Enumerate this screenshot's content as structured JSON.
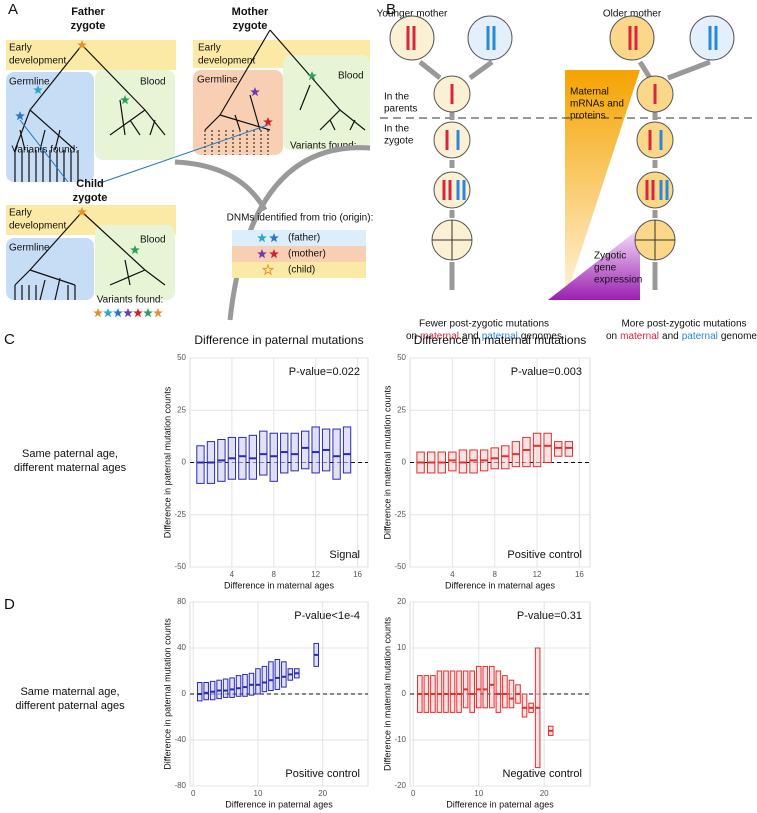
{
  "figure": {
    "panel_labels": [
      "A",
      "B",
      "C",
      "D"
    ],
    "A": {
      "labels": [
        "Father",
        "zygote",
        "Mother",
        "zygote",
        "Early",
        "development",
        "Germline",
        "Blood",
        "Early",
        "development",
        "Germline",
        "Blood",
        "Variants found:",
        "Variants found:",
        "Child",
        "zygote",
        "Early",
        "development",
        "Germline",
        "Blood",
        "Variants found:",
        "DNMs identified from trio (origin):",
        "(father)",
        "(mother)",
        "(child)"
      ]
    },
    "B": {
      "labels": [
        "Younger mother",
        "Older mother",
        "In the",
        "parents",
        "In the",
        "zygote",
        "Maternal",
        "mRNAs and",
        "proteins",
        "Zygotic",
        "gene",
        "expression",
        "Fewer post-zygotic mutations",
        "on",
        "maternal",
        "and",
        "paternal",
        "genomes",
        "More post-zygotic mutations",
        "on",
        "maternal",
        "and",
        "paternal",
        "genomes"
      ]
    },
    "rows": [
      "Same paternal age,",
      "different maternal ages",
      "Same maternal age,",
      "different paternal ages"
    ]
  },
  "chart_data": [
    {
      "type": "box",
      "title": "Difference in paternal mutations",
      "xlabel": "Difference in maternal ages",
      "ylabel": "Difference in paternal mutation counts",
      "annotation": "P-value=0.022",
      "note": "Signal",
      "xlim": [
        0,
        17
      ],
      "xticks": [
        4,
        8,
        12,
        16
      ],
      "ylim": [
        -50,
        50
      ],
      "yticks": [
        -50,
        -25,
        0,
        25,
        50
      ],
      "hline": 0,
      "grid": true,
      "color": "#2a2ab8",
      "fill": "#cfcff0",
      "x": [
        1,
        2,
        3,
        4,
        5,
        6,
        7,
        8,
        9,
        10,
        11,
        12,
        13,
        14,
        15
      ],
      "q1": [
        -10,
        -10,
        -9,
        -8,
        -8,
        -8,
        -6,
        -9,
        -5,
        -4,
        -3,
        -5,
        -4,
        -8,
        -5
      ],
      "median": [
        0,
        0,
        1,
        2,
        3,
        2,
        4,
        3,
        5,
        4,
        7,
        5,
        6,
        3,
        4
      ],
      "q3": [
        8,
        10,
        11,
        12,
        12,
        13,
        15,
        14,
        14,
        14,
        15,
        17,
        16,
        16,
        17
      ]
    },
    {
      "type": "box",
      "title": "Difference in maternal mutations",
      "xlabel": "Difference in maternal ages",
      "ylabel": "Difference in maternal mutation counts",
      "annotation": "P-value=0.003",
      "note": "Positive control",
      "xlim": [
        0,
        17
      ],
      "xticks": [
        4,
        8,
        12,
        16
      ],
      "ylim": [
        -50,
        50
      ],
      "yticks": [
        -50,
        -25,
        0,
        25,
        50
      ],
      "hline": 0,
      "grid": true,
      "color": "#e03030",
      "fill": "#f8d0d0",
      "x": [
        1,
        2,
        3,
        4,
        5,
        6,
        7,
        8,
        9,
        10,
        11,
        12,
        13,
        14,
        15
      ],
      "q1": [
        -5,
        -5,
        -5,
        -4,
        -5,
        -5,
        -4,
        -3,
        -3,
        -2,
        -2,
        -2,
        0,
        3,
        3
      ],
      "median": [
        0,
        0,
        0,
        1,
        0,
        1,
        1,
        2,
        3,
        4,
        6,
        8,
        8,
        7,
        7
      ],
      "q3": [
        5,
        5,
        5,
        5,
        6,
        6,
        6,
        7,
        8,
        10,
        12,
        14,
        14,
        10,
        10
      ]
    },
    {
      "type": "box",
      "xlabel": "Difference in paternal ages",
      "ylabel": "Difference in paternal mutation counts",
      "annotation": "P-value<1e-4",
      "note": "Positive control",
      "xlim": [
        -0.5,
        27
      ],
      "xticks": [
        0,
        10,
        20
      ],
      "ylim": [
        -80,
        80
      ],
      "yticks": [
        -80,
        -40,
        0,
        40,
        80
      ],
      "hline": 0,
      "grid": true,
      "color": "#2a2ab8",
      "fill": "#cfcff0",
      "x": [
        1,
        2,
        3,
        4,
        5,
        6,
        7,
        8,
        9,
        10,
        11,
        12,
        13,
        14,
        15,
        16,
        19
      ],
      "q1": [
        -6,
        -5,
        -5,
        -4,
        -3,
        -3,
        -2,
        -2,
        -1,
        0,
        2,
        3,
        4,
        6,
        12,
        14,
        24
      ],
      "median": [
        0,
        1,
        2,
        3,
        3,
        4,
        5,
        6,
        8,
        8,
        10,
        12,
        14,
        15,
        17,
        18,
        34
      ],
      "q3": [
        10,
        10,
        11,
        12,
        13,
        14,
        16,
        17,
        18,
        22,
        24,
        28,
        30,
        28,
        22,
        22,
        44
      ]
    },
    {
      "type": "box",
      "xlabel": "Difference in paternal ages",
      "ylabel": "Difference in maternal mutation counts",
      "annotation": "P-value=0.31",
      "note": "Negative control",
      "xlim": [
        -0.5,
        27
      ],
      "xticks": [
        0,
        10,
        20
      ],
      "ylim": [
        -20,
        20
      ],
      "yticks": [
        -20,
        -10,
        0,
        10,
        20
      ],
      "hline": 0,
      "grid": true,
      "color": "#e03030",
      "fill": "#f8d0d0",
      "x": [
        1,
        2,
        3,
        4,
        5,
        6,
        7,
        8,
        9,
        10,
        11,
        12,
        13,
        14,
        15,
        16,
        17,
        18,
        19,
        21
      ],
      "q1": [
        -4,
        -4,
        -4,
        -4,
        -4,
        -4,
        -4,
        -3,
        -4,
        -3,
        -3,
        -3,
        -4,
        -3,
        -3,
        -2,
        -5,
        -4,
        -16,
        -9
      ],
      "median": [
        0,
        0,
        0,
        0,
        0,
        0,
        0,
        1,
        0,
        1,
        1,
        2,
        0,
        0,
        -1,
        0,
        -3,
        -3,
        -3,
        -8
      ],
      "q3": [
        4,
        4,
        4,
        5,
        5,
        5,
        5,
        5,
        5,
        6,
        6,
        6,
        5,
        4,
        3,
        2,
        0,
        -2,
        10,
        -7
      ]
    }
  ]
}
